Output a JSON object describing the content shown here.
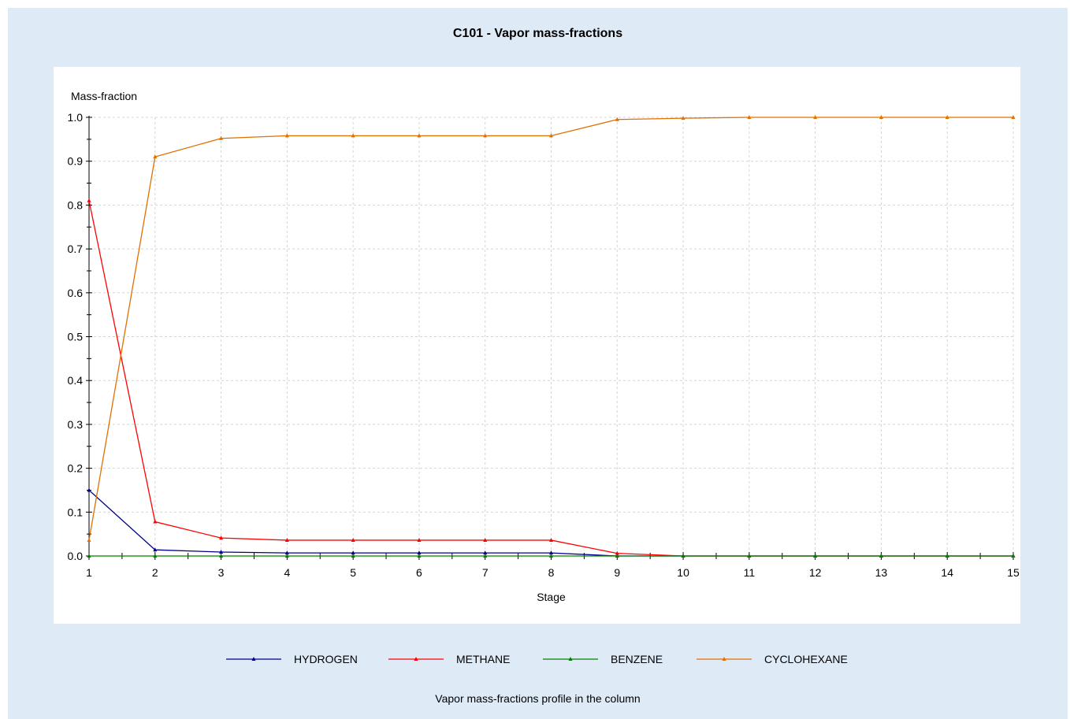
{
  "chart_data": {
    "type": "line",
    "title": "C101 - Vapor mass-fractions",
    "ylabel": "Mass-fraction",
    "xlabel": "Stage",
    "caption": "Vapor mass-fractions profile in the column",
    "x": [
      1,
      2,
      3,
      4,
      5,
      6,
      7,
      8,
      9,
      10,
      11,
      12,
      13,
      14,
      15
    ],
    "x_ticks": [
      "1",
      "2",
      "3",
      "4",
      "5",
      "6",
      "7",
      "8",
      "9",
      "10",
      "11",
      "12",
      "13",
      "14",
      "15"
    ],
    "y_ticks": [
      "0.0",
      "0.1",
      "0.2",
      "0.3",
      "0.4",
      "0.5",
      "0.6",
      "0.7",
      "0.8",
      "0.9",
      "1.0"
    ],
    "xlim": [
      1,
      15
    ],
    "ylim": [
      0,
      1.0
    ],
    "grid": true,
    "legend_position": "bottom",
    "series": [
      {
        "name": "HYDROGEN",
        "color": "#00008b",
        "values": [
          0.15,
          0.014,
          0.009,
          0.007,
          0.007,
          0.007,
          0.007,
          0.007,
          0.0,
          0.0,
          0.0,
          0.0,
          0.0,
          0.0,
          0.0
        ]
      },
      {
        "name": "METHANE",
        "color": "#ff0000",
        "values": [
          0.81,
          0.078,
          0.041,
          0.036,
          0.036,
          0.036,
          0.036,
          0.036,
          0.006,
          0.0,
          0.0,
          0.0,
          0.0,
          0.0,
          0.0
        ]
      },
      {
        "name": "BENZENE",
        "color": "#008000",
        "values": [
          0.0,
          0.0,
          0.0,
          0.0,
          0.0,
          0.0,
          0.0,
          0.0,
          0.0,
          0.0,
          0.0,
          0.0,
          0.0,
          0.0,
          0.0
        ]
      },
      {
        "name": "CYCLOHEXANE",
        "color": "#e07000",
        "values": [
          0.036,
          0.91,
          0.952,
          0.958,
          0.958,
          0.958,
          0.958,
          0.958,
          0.995,
          0.998,
          1.0,
          1.0,
          1.0,
          1.0,
          1.0
        ]
      }
    ]
  }
}
